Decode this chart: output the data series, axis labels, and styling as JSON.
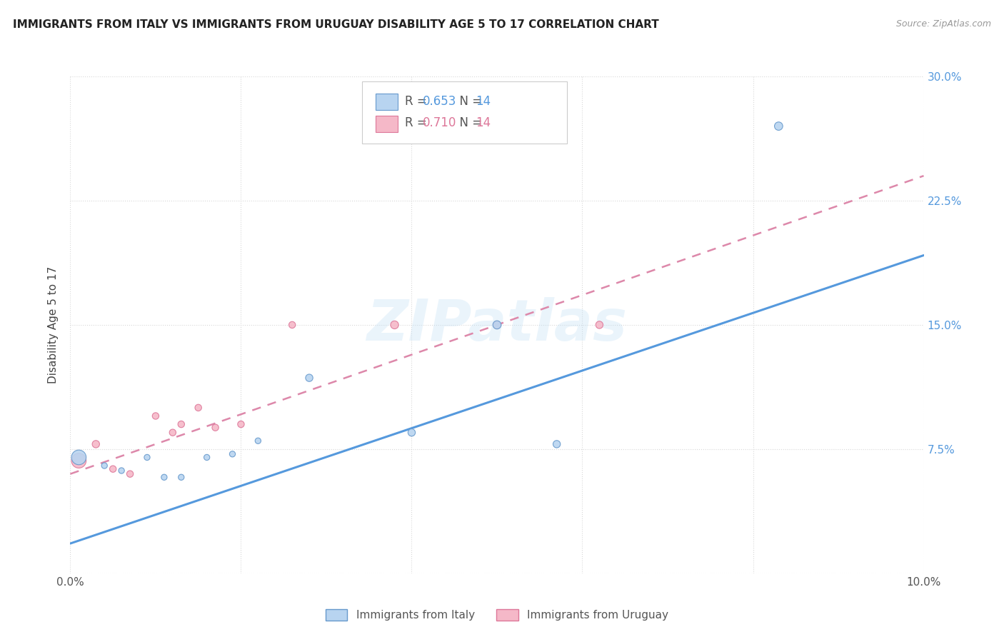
{
  "title": "IMMIGRANTS FROM ITALY VS IMMIGRANTS FROM URUGUAY DISABILITY AGE 5 TO 17 CORRELATION CHART",
  "source": "Source: ZipAtlas.com",
  "ylabel": "Disability Age 5 to 17",
  "xlim": [
    0.0,
    0.1
  ],
  "ylim": [
    0.0,
    0.3
  ],
  "xticks": [
    0.0,
    0.02,
    0.04,
    0.06,
    0.08,
    0.1
  ],
  "yticks": [
    0.0,
    0.075,
    0.15,
    0.225,
    0.3
  ],
  "background_color": "#ffffff",
  "grid_color": "#d8d8d8",
  "watermark": "ZIPatlas",
  "italy_color": "#b8d4f0",
  "italy_edge_color": "#6699cc",
  "uruguay_color": "#f5b8c8",
  "uruguay_edge_color": "#dd7799",
  "italy_line_color": "#5599dd",
  "uruguay_line_color": "#dd88aa",
  "legend_italy_R": "0.653",
  "legend_italy_N": "14",
  "legend_uruguay_R": "0.710",
  "legend_uruguay_N": "14",
  "legend_label_italy": "Immigrants from Italy",
  "legend_label_uruguay": "Immigrants from Uruguay",
  "italy_x": [
    0.001,
    0.004,
    0.006,
    0.009,
    0.011,
    0.013,
    0.016,
    0.019,
    0.022,
    0.028,
    0.04,
    0.05,
    0.057,
    0.083
  ],
  "italy_y": [
    0.07,
    0.065,
    0.062,
    0.07,
    0.058,
    0.058,
    0.07,
    0.072,
    0.08,
    0.118,
    0.085,
    0.15,
    0.078,
    0.27
  ],
  "italy_size": [
    220,
    35,
    35,
    35,
    35,
    35,
    35,
    35,
    35,
    55,
    55,
    70,
    55,
    70
  ],
  "uruguay_x": [
    0.001,
    0.003,
    0.005,
    0.007,
    0.01,
    0.012,
    0.013,
    0.015,
    0.017,
    0.02,
    0.026,
    0.038,
    0.05,
    0.062
  ],
  "uruguay_y": [
    0.068,
    0.078,
    0.063,
    0.06,
    0.095,
    0.085,
    0.09,
    0.1,
    0.088,
    0.09,
    0.15,
    0.15,
    0.15,
    0.15
  ],
  "uruguay_size": [
    220,
    55,
    45,
    45,
    45,
    45,
    45,
    45,
    45,
    45,
    45,
    65,
    55,
    55
  ],
  "italy_trend_x": [
    0.0,
    0.1
  ],
  "italy_trend_y": [
    0.018,
    0.192
  ],
  "uruguay_trend_x": [
    0.0,
    0.1
  ],
  "uruguay_trend_y": [
    0.06,
    0.24
  ]
}
